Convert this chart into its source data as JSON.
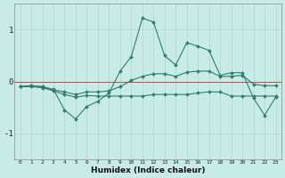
{
  "title": "",
  "xlabel": "Humidex (Indice chaleur)",
  "x": [
    0,
    1,
    2,
    3,
    4,
    5,
    6,
    7,
    8,
    9,
    10,
    11,
    12,
    13,
    14,
    15,
    16,
    17,
    18,
    19,
    20,
    21,
    22,
    23
  ],
  "line1": [
    -0.1,
    -0.08,
    -0.1,
    -0.15,
    -0.55,
    -0.72,
    -0.48,
    -0.38,
    -0.22,
    0.2,
    0.48,
    1.22,
    1.15,
    0.5,
    0.32,
    0.75,
    0.68,
    0.6,
    0.12,
    0.17,
    0.17,
    -0.32,
    -0.65,
    -0.3
  ],
  "line2": [
    -0.1,
    -0.1,
    -0.12,
    -0.18,
    -0.25,
    -0.3,
    -0.27,
    -0.28,
    -0.28,
    -0.28,
    -0.28,
    -0.28,
    -0.25,
    -0.25,
    -0.25,
    -0.25,
    -0.22,
    -0.2,
    -0.2,
    -0.28,
    -0.28,
    -0.28,
    -0.28,
    -0.28
  ],
  "line3": [
    -0.1,
    -0.08,
    -0.1,
    -0.16,
    -0.2,
    -0.25,
    -0.2,
    -0.2,
    -0.18,
    -0.1,
    0.02,
    0.1,
    0.15,
    0.15,
    0.1,
    0.18,
    0.2,
    0.2,
    0.1,
    0.1,
    0.12,
    -0.05,
    -0.08,
    -0.08
  ],
  "color": "#2E7D6E",
  "bg_color": "#C8EBE8",
  "grid_color": "#B0D8D4",
  "hline_color": "#CC4444",
  "ylim": [
    -1.5,
    1.5
  ],
  "xlim": [
    -0.5,
    23.5
  ],
  "yticks": [
    -1,
    0,
    1
  ],
  "xticks": [
    0,
    1,
    2,
    3,
    4,
    5,
    6,
    7,
    8,
    9,
    10,
    11,
    12,
    13,
    14,
    15,
    16,
    17,
    18,
    19,
    20,
    21,
    22,
    23
  ]
}
